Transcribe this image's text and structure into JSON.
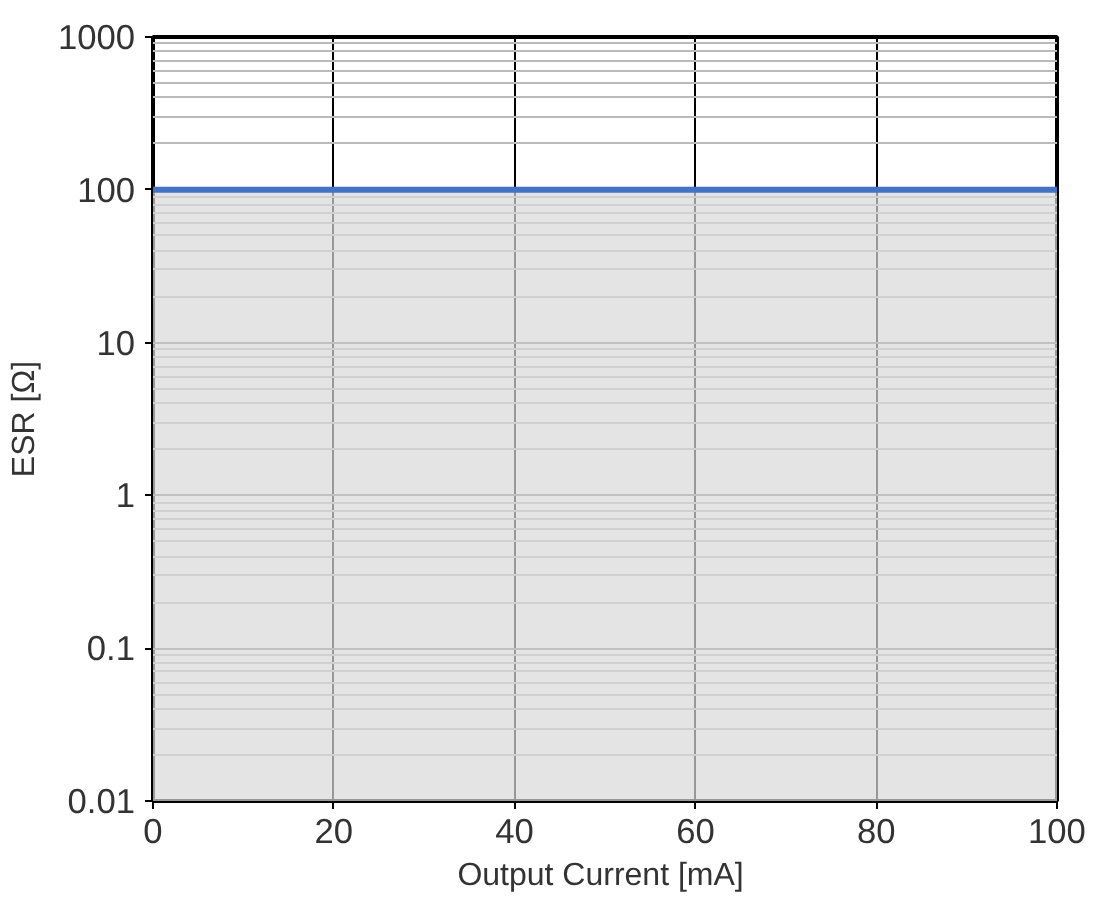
{
  "chart_data": {
    "type": "line",
    "xlabel": "Output  Current [mA]",
    "ylabel": "ESR [Ω]",
    "x": [
      0,
      100
    ],
    "series": [
      {
        "color": "#4472c4",
        "values": [
          100,
          100
        ]
      }
    ],
    "xlim": [
      0,
      100
    ],
    "xticks": [
      0,
      20,
      40,
      60,
      80,
      100
    ],
    "ylim": [
      0.01,
      1000
    ],
    "yticks": [
      0.01,
      0.1,
      1,
      10,
      100,
      1000
    ],
    "log": "y",
    "grid": true,
    "marker": "none",
    "line_style": "solid",
    "bands": [
      {
        "axis": "y",
        "from": 0.01,
        "to": 100,
        "color": "#d9d9d9"
      }
    ]
  }
}
